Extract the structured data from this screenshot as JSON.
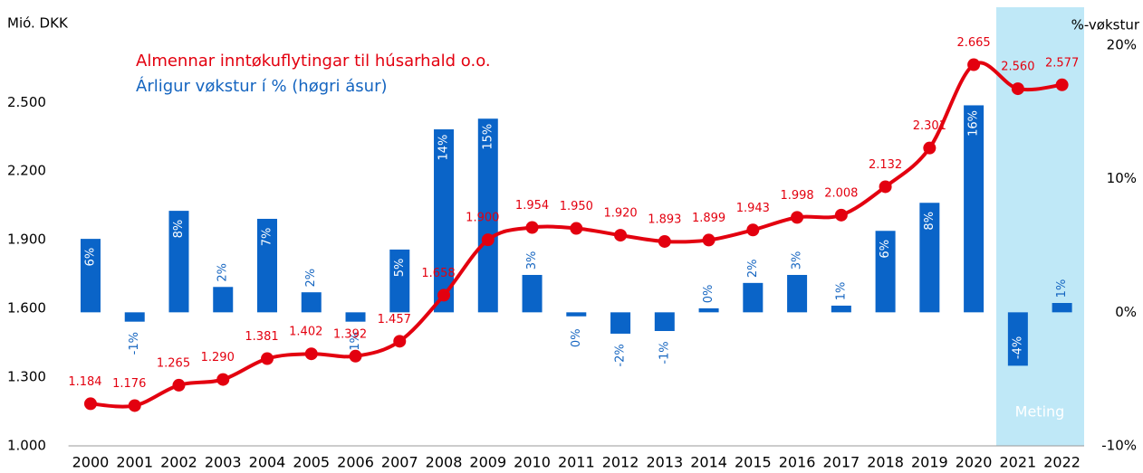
{
  "chart_data": {
    "type": "bar-line",
    "y_label": "Mió. DKK",
    "y2_label": "%-vøkstur",
    "annotation": "Meting",
    "categories": [
      "2000",
      "2001",
      "2002",
      "2003",
      "2004",
      "2005",
      "2006",
      "2007",
      "2008",
      "2009",
      "2010",
      "2011",
      "2012",
      "2013",
      "2014",
      "2015",
      "2016",
      "2017",
      "2018",
      "2019",
      "2020",
      "2021",
      "2022"
    ],
    "series": [
      {
        "name": "Almennar inntøkuflytingar til húsarhald o.o.",
        "type": "line",
        "color": "#e3000f",
        "values": [
          1184,
          1176,
          1265,
          1290,
          1381,
          1402,
          1392,
          1457,
          1658,
          1900,
          1954,
          1950,
          1920,
          1893,
          1899,
          1943,
          1998,
          2008,
          2132,
          2301,
          2665,
          2560,
          2577
        ],
        "value_labels": [
          "1.184",
          "1.176",
          "1.265",
          "1.290",
          "1.381",
          "1.402",
          "1.392",
          "1.457",
          "1.658",
          "1.900",
          "1.954",
          "1.950",
          "1.920",
          "1.893",
          "1.899",
          "1.943",
          "1.998",
          "2.008",
          "2.132",
          "2.301",
          "2.665",
          "2.560",
          "2.577"
        ]
      },
      {
        "name": "Árligur vøkstur í % (høgri ásur)",
        "type": "bar",
        "axis": "y2",
        "color": "#0a64c8",
        "values": [
          5.5,
          -0.7,
          7.6,
          1.9,
          7.0,
          1.5,
          -0.7,
          4.7,
          13.7,
          14.5,
          2.8,
          -0.3,
          -1.6,
          -1.4,
          0.3,
          2.2,
          2.8,
          0.5,
          6.1,
          8.2,
          15.5,
          -4.0,
          0.7
        ],
        "value_labels": [
          "6%",
          "-1%",
          "8%",
          "2%",
          "7%",
          "2%",
          "-1%",
          "5%",
          "14%",
          "15%",
          "3%",
          "0%",
          "-2%",
          "-1%",
          "0%",
          "2%",
          "3%",
          "1%",
          "6%",
          "8%",
          "16%",
          "-4%",
          "1%"
        ]
      }
    ],
    "ylim": [
      1000,
      2750
    ],
    "yticks": [
      {
        "value": 1000,
        "label": "1.000"
      },
      {
        "value": 1300,
        "label": "1.300"
      },
      {
        "value": 1600,
        "label": "1.600"
      },
      {
        "value": 1900,
        "label": "1.900"
      },
      {
        "value": 2200,
        "label": "2.200"
      },
      {
        "value": 2500,
        "label": "2.500"
      }
    ],
    "y2lim": [
      -10,
      20
    ],
    "y2ticks": [
      {
        "value": -10,
        "label": "-10%"
      },
      {
        "value": 0,
        "label": "0%"
      },
      {
        "value": 10,
        "label": "10%"
      },
      {
        "value": 20,
        "label": "20%"
      }
    ]
  }
}
